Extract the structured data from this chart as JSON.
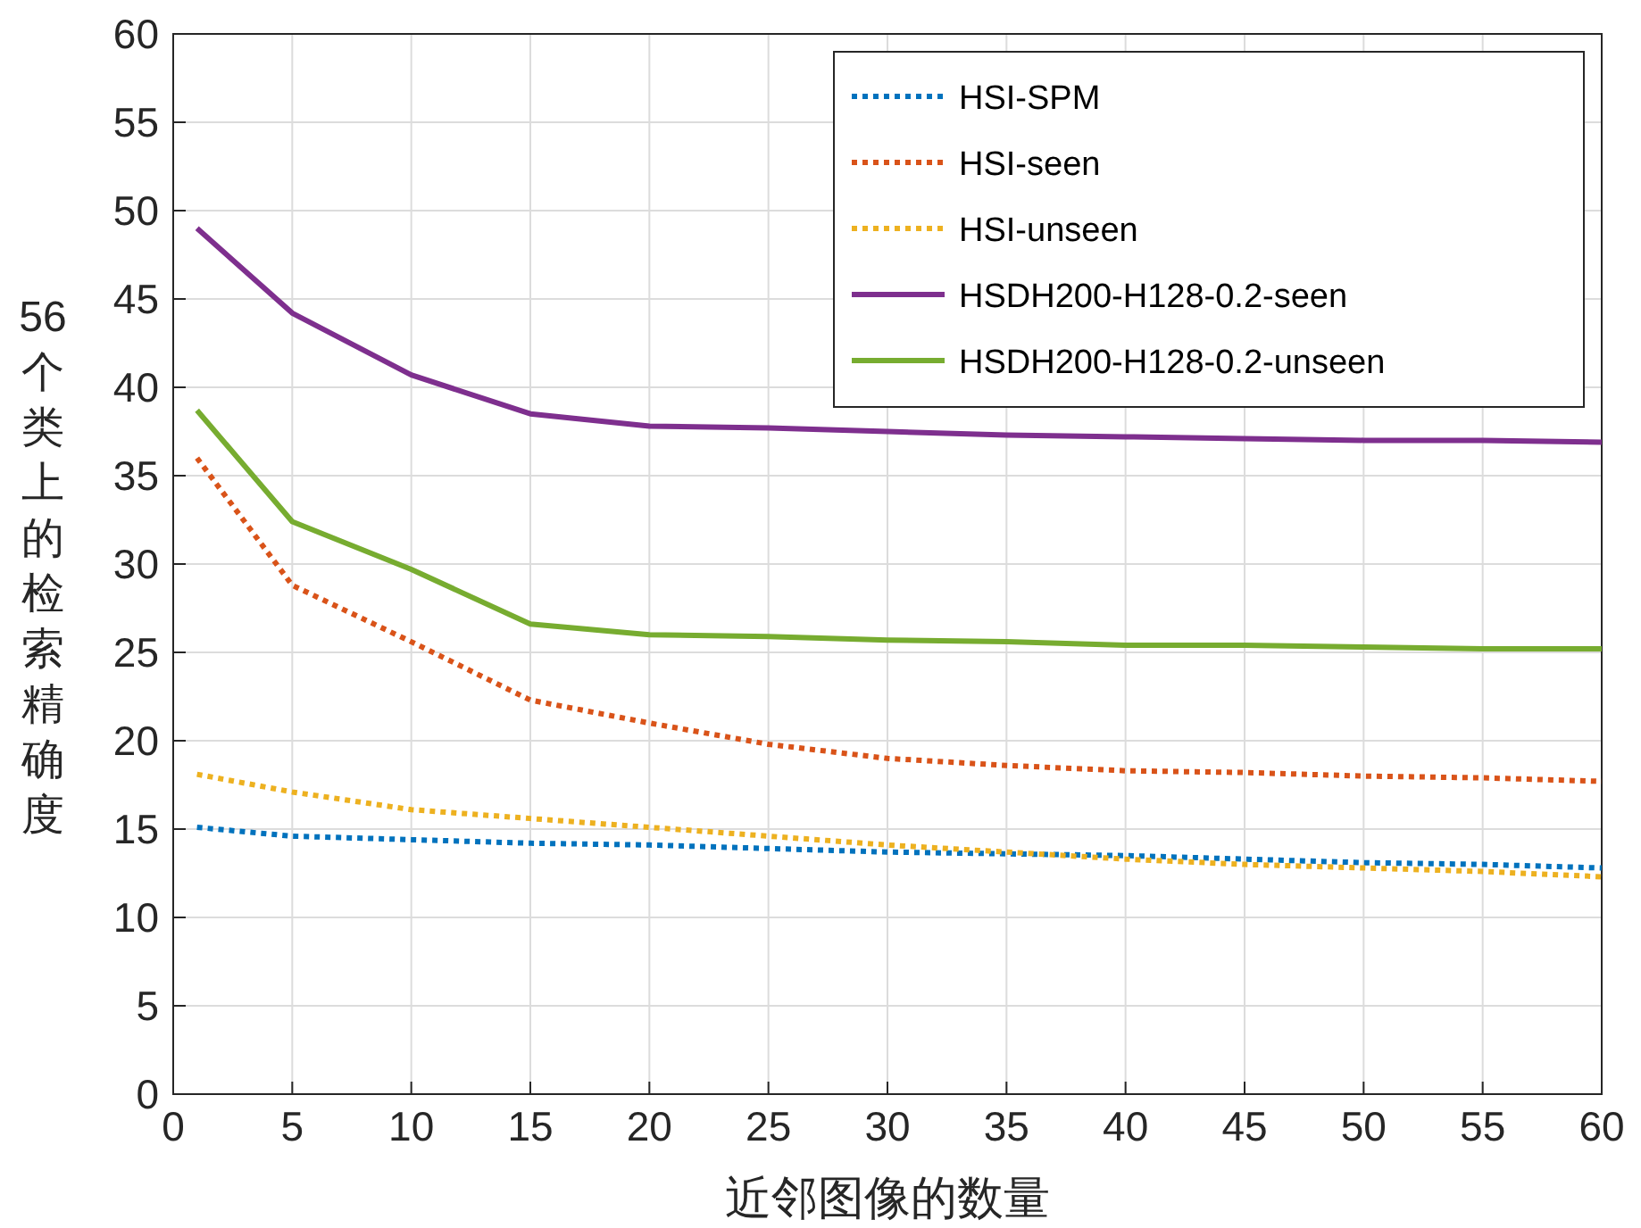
{
  "chart_data": {
    "type": "line",
    "xlabel": "近邻图像的数量",
    "ylabel": "56个类上的检索精确度",
    "x": [
      1,
      5,
      10,
      15,
      20,
      25,
      30,
      35,
      40,
      45,
      50,
      55,
      60
    ],
    "xlim": [
      0,
      60
    ],
    "xticks": [
      0,
      5,
      10,
      15,
      20,
      25,
      30,
      35,
      40,
      45,
      50,
      55,
      60
    ],
    "ylim": [
      0,
      60
    ],
    "yticks": [
      0,
      5,
      10,
      15,
      20,
      25,
      30,
      35,
      40,
      45,
      50,
      55,
      60
    ],
    "grid": true,
    "legend": "top right",
    "marker": "none",
    "series": [
      {
        "name": "HSI-SPM",
        "color": "#0072bd",
        "line_style": "dotted",
        "values": [
          15.1,
          14.6,
          14.4,
          14.2,
          14.1,
          13.9,
          13.7,
          13.6,
          13.5,
          13.3,
          13.1,
          13.0,
          12.8
        ]
      },
      {
        "name": "HSI-seen",
        "color": "#d95319",
        "line_style": "dotted",
        "values": [
          36.0,
          28.8,
          25.6,
          22.3,
          21.0,
          19.8,
          19.0,
          18.6,
          18.3,
          18.2,
          18.0,
          17.9,
          17.7
        ]
      },
      {
        "name": "HSI-unseen",
        "color": "#edb120",
        "line_style": "dotted",
        "values": [
          18.1,
          17.1,
          16.1,
          15.6,
          15.1,
          14.6,
          14.1,
          13.7,
          13.3,
          13.0,
          12.8,
          12.6,
          12.3
        ]
      },
      {
        "name": "HSDH200-H128-0.2-seen",
        "color": "#7e2f8e",
        "line_style": "solid",
        "values": [
          49.0,
          44.2,
          40.7,
          38.5,
          37.8,
          37.7,
          37.5,
          37.3,
          37.2,
          37.1,
          37.0,
          37.0,
          36.9
        ]
      },
      {
        "name": "HSDH200-H128-0.2-unseen",
        "color": "#77ac30",
        "line_style": "solid",
        "values": [
          38.7,
          32.4,
          29.7,
          26.6,
          26.0,
          25.9,
          25.7,
          25.6,
          25.4,
          25.4,
          25.3,
          25.2,
          25.2
        ]
      }
    ]
  }
}
